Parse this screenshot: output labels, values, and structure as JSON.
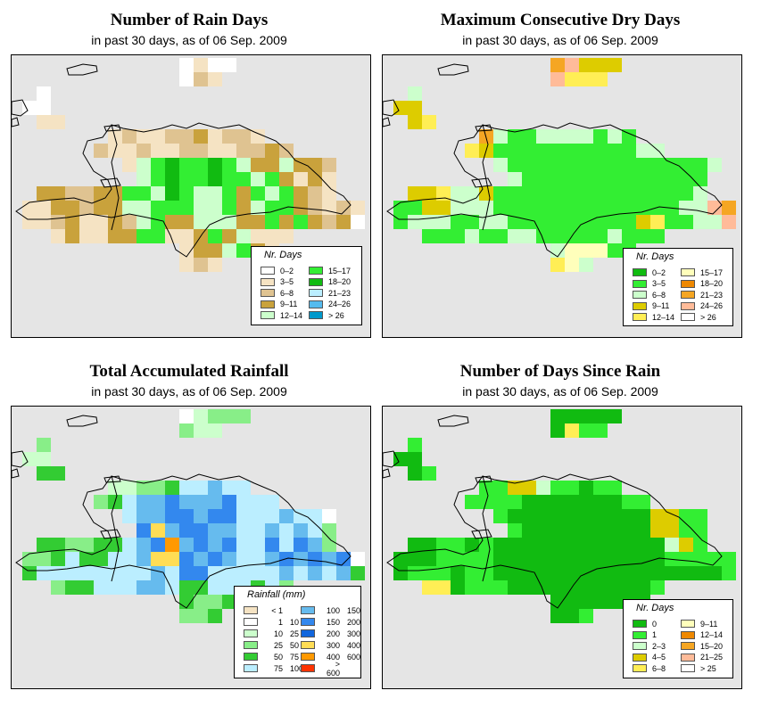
{
  "panels": [
    {
      "title": "Number of Rain Days",
      "subtitle": "in past 30 days, as of  06 Sep. 2009",
      "legend": {
        "title": "Nr. Days",
        "items": [
          {
            "label": "0–2",
            "color": "#ffffff"
          },
          {
            "label": "3–5",
            "color": "#f5e3c3"
          },
          {
            "label": "6–8",
            "color": "#dfc391"
          },
          {
            "label": "9–11",
            "color": "#c9a23c"
          },
          {
            "label": "12–14",
            "color": "#ccffcc"
          },
          {
            "label": "15–17",
            "color": "#33ee33"
          },
          {
            "label": "18–20",
            "color": "#11bb11"
          },
          {
            "label": "21–23",
            "color": "#bbeeff"
          },
          {
            "label": "24–26",
            "color": "#55bbee"
          },
          {
            "label": "> 26",
            "color": "#0099cc"
          }
        ]
      },
      "grid": [
        "...........ABAA..........",
        "...........ACB...........",
        ".A.......................",
        "AA.......................",
        ".BB......................",
        "......BCBBCCDBCCB........",
        ".....CBBCBBCCBBCCDC......",
        ".......BEFGFFGFEDDEDDC...",
        "........EFGFFGFFEFDBDB...",
        ".DDCCDDFFEGFEEFDFEFDCB...",
        "BBDDCDDEEFFFEEFDEFFDCBCB.",
        "BBCDBBDCEFDDEEEDDFDFDCDA.",
        "..BDBBDDFFBBDFDEBBB......",
        "...........BDDEFDB.......",
        "...........BCB..........."
      ]
    },
    {
      "title": "Maximum Consecutive Dry Days",
      "subtitle": "in past 30 days, as of  06 Sep. 2009",
      "legend": {
        "title": "Nr. Days",
        "items": [
          {
            "label": "0–2",
            "color": "#11bb11"
          },
          {
            "label": "3–5",
            "color": "#33ee33"
          },
          {
            "label": "6–8",
            "color": "#ccffcc"
          },
          {
            "label": "9–11",
            "color": "#ddcc00"
          },
          {
            "label": "12–14",
            "color": "#ffee55"
          },
          {
            "label": "15–17",
            "color": "#ffffbb"
          },
          {
            "label": "18–20",
            "color": "#ee8800"
          },
          {
            "label": "21–23",
            "color": "#f5a623"
          },
          {
            "label": "24–26",
            "color": "#ffbb99"
          },
          {
            "label": "> 26",
            "color": "#ffffff"
          }
        ]
      },
      "grid": [
        "...........HIDDD.........",
        "...........IEEE..........",
        ".C.......................",
        "DD.......................",
        ".DE......................",
        "......HCBBCCCCBCB........",
        ".....EDBBBBBBBBBBCC......",
        ".......CBBBBBBBBBBBBBBC..",
        "........CBBBBBBBBBBBBB...",
        ".DDECCDBBBBBBBBBBBBBBC...",
        "BBDDCCCBBBBBBBBBBBBBCCIH.",
        "BCCCBBCCBBBBBBBBBDEBBCCI.",
        "..BBBCBBCCBBBBBCBBB......",
        "...........CFFFBB........",
        "...........EFC..........."
      ]
    },
    {
      "title": "Total Accumulated Rainfall",
      "subtitle": "in past 30 days, as of  06 Sep. 2009",
      "legend": {
        "title": "Rainfall (mm)",
        "items": [
          {
            "lo": "< 1",
            "hi": "",
            "color": "#f5e3c3"
          },
          {
            "lo": "1",
            "hi": "10",
            "color": "#ffffff"
          },
          {
            "lo": "10",
            "hi": "25",
            "color": "#ccffcc"
          },
          {
            "lo": "25",
            "hi": "50",
            "color": "#88ee88"
          },
          {
            "lo": "50",
            "hi": "75",
            "color": "#33cc33"
          },
          {
            "lo": "75",
            "hi": "100",
            "color": "#bbeeff"
          },
          {
            "lo": "100",
            "hi": "150",
            "color": "#66bbee"
          },
          {
            "lo": "150",
            "hi": "200",
            "color": "#3388ee"
          },
          {
            "lo": "200",
            "hi": "300",
            "color": "#1166dd"
          },
          {
            "lo": "300",
            "hi": "400",
            "color": "#ffdd55"
          },
          {
            "lo": "400",
            "hi": "600",
            "color": "#ff9900"
          },
          {
            "lo": "> 600",
            "hi": "",
            "color": "#ff3300"
          }
        ]
      },
      "grid": [
        "...........BCDDD.........",
        "...........DCC...........",
        ".D.......................",
        "CC.......................",
        ".EE......................",
        "......CCDDEFFGFF.........",
        ".....DEFGGHGGGHFFF.......",
        ".......FGGHHGHHFFFGFFB...",
        "........HJGHHGGFFGFGFD...",
        ".EEDDEEFGHKGHGHFFHFHGD...",
        "DDEFEEFFGJJHGHGFFGHGHGHB.",
        "EFFFFFFFFGFHHFFFFFGFGFGE.",
        "..DEEFFFGGFEEFFFEFD......",
        "...........EDDEEEE.......",
        "...........DDE..........."
      ]
    },
    {
      "title": "Number of Days Since Rain",
      "subtitle": "in past 30 days, as of  06 Sep. 2009",
      "legend": {
        "title": "Nr. Days",
        "items": [
          {
            "label": "0",
            "color": "#11bb11"
          },
          {
            "label": "1",
            "color": "#33ee33"
          },
          {
            "label": "2–3",
            "color": "#ccffcc"
          },
          {
            "label": "4–5",
            "color": "#ddcc00"
          },
          {
            "label": "6–8",
            "color": "#ffee55"
          },
          {
            "label": "9–11",
            "color": "#ffffbb"
          },
          {
            "label": "12–14",
            "color": "#ee8800"
          },
          {
            "label": "15–20",
            "color": "#f5a623"
          },
          {
            "label": "21–25",
            "color": "#ffbb99"
          },
          {
            "label": "> 25",
            "color": "#ffffff"
          }
        ]
      },
      "grid": [
        "...........AAAAA.........",
        "...........AEBB..........",
        ".B.......................",
        "AA.......................",
        ".AB......................",
        "......BBDDCBBABB.........",
        ".....BBBBAAAAAAABB.......",
        ".......BAAAAAAAAAADDBB...",
        "........BAAAAAAAAADDBB...",
        ".AABBABAAAAAAAAAAAACDB...",
        "AAABBBBAAAAAAAAAAAABBBBB.",
        "ABBBABBAAAAAAAAAAAAAAAAB.",
        "..EEABBBAAAAAAAAAAB......",
        "...........AAAAAAA.......",
        "...........AAB..........."
      ]
    }
  ]
}
